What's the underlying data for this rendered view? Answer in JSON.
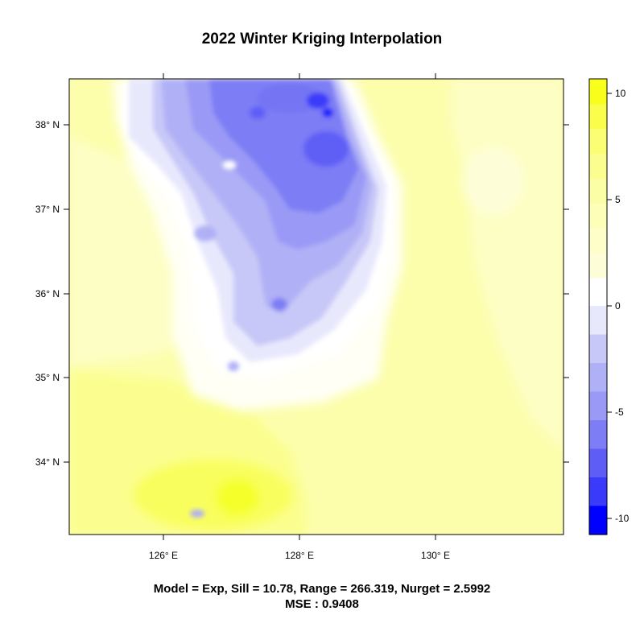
{
  "title": "2022 Winter Kriging Interpolation",
  "axes": {
    "x_ticks": [
      "126° E",
      "128° E",
      "130° E"
    ],
    "y_ticks": [
      "38° N",
      "37° N",
      "36° N",
      "35° N",
      "34° N"
    ]
  },
  "colorbar": {
    "tick_labels": [
      "10",
      "5",
      "0",
      "-5",
      "-10"
    ],
    "range": [
      -11,
      10.6
    ],
    "colors": {
      "positive": [
        "#fdfed8",
        "#fdfec8",
        "#fdfeb8",
        "#fcfea6",
        "#fbfe8e",
        "#fbfe72",
        "#fafe4a",
        "#f9ff1a"
      ],
      "negative": [
        "#e8e8fd",
        "#c8c8f8",
        "#b0b0f6",
        "#9a9af6",
        "#7d7df5",
        "#5e5ef6",
        "#3a3afa",
        "#0000ff"
      ]
    }
  },
  "footer": {
    "model_line": "Model = Exp, Sill = 10.78, Range = 266.319, Nurget = 2.5992",
    "mse_line": "MSE : 0.9408"
  }
}
